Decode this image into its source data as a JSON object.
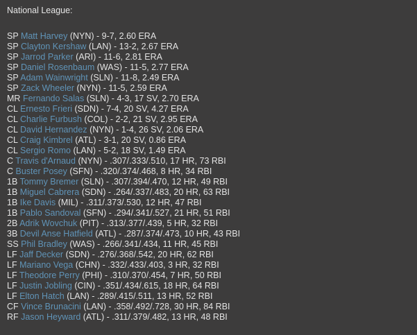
{
  "page": {
    "title": "National League:"
  },
  "colors": {
    "background": "#3d3c3c",
    "text": "#e3e3e3",
    "link": "#6094b8"
  },
  "players": [
    {
      "pos": "SP",
      "name": "Matt Harvey",
      "team": "NYN",
      "rest": "(NYN) - 9-7, 2.60 ERA"
    },
    {
      "pos": "SP",
      "name": "Clayton Kershaw",
      "team": "LAN",
      "rest": "(LAN) - 13-2, 2.67 ERA"
    },
    {
      "pos": "SP",
      "name": "Jarrod Parker",
      "team": "ARI",
      "rest": "(ARI) - 11-6, 2.81 ERA"
    },
    {
      "pos": "SP",
      "name": "Daniel Rosenbaum",
      "team": "WAS",
      "rest": "(WAS) - 11-5, 2.77 ERA"
    },
    {
      "pos": "SP",
      "name": "Adam Wainwright",
      "team": "SLN",
      "rest": "(SLN) - 11-8, 2.49 ERA"
    },
    {
      "pos": "SP",
      "name": "Zack Wheeler",
      "team": "NYN",
      "rest": "(NYN) - 11-5, 2.59 ERA"
    },
    {
      "pos": "MR",
      "name": "Fernando Salas",
      "team": "SLN",
      "rest": "(SLN) - 4-3, 17 SV, 2.70 ERA"
    },
    {
      "pos": "CL",
      "name": "Ernesto Frieri",
      "team": "SDN",
      "rest": "(SDN) - 7-4, 20 SV, 4.27 ERA"
    },
    {
      "pos": "CL",
      "name": "Charlie Furbush",
      "team": "COL",
      "rest": "(COL) - 2-2, 21 SV, 2.95 ERA"
    },
    {
      "pos": "CL",
      "name": "David Hernandez",
      "team": "NYN",
      "rest": "(NYN) - 1-4, 26 SV, 2.06 ERA"
    },
    {
      "pos": "CL",
      "name": "Craig Kimbrel",
      "team": "ATL",
      "rest": "(ATL) - 3-1, 20 SV, 0.86 ERA"
    },
    {
      "pos": "CL",
      "name": "Sergio Romo",
      "team": "LAN",
      "rest": "(LAN) - 5-2, 18 SV, 1.49 ERA"
    },
    {
      "pos": "C",
      "name": "Travis d'Arnaud",
      "team": "NYN",
      "rest": "(NYN) - .307/.333/.510, 17 HR, 73 RBI"
    },
    {
      "pos": "C",
      "name": "Buster Posey",
      "team": "SFN",
      "rest": "(SFN) - .320/.374/.468, 8 HR, 34 RBI"
    },
    {
      "pos": "1B",
      "name": "Tommy Bremer",
      "team": "SLN",
      "rest": "(SLN) - .307/.394/.470, 12 HR, 49 RBI"
    },
    {
      "pos": "1B",
      "name": "Miguel Cabrera",
      "team": "SDN",
      "rest": "(SDN) - .264/.337/.483, 20 HR, 63 RBI"
    },
    {
      "pos": "1B",
      "name": "Ike Davis",
      "team": "MIL",
      "rest": "(MIL) - .311/.373/.530, 12 HR, 47 RBI"
    },
    {
      "pos": "1B",
      "name": "Pablo Sandoval",
      "team": "SFN",
      "rest": "(SFN) - .294/.341/.527, 21 HR, 51 RBI"
    },
    {
      "pos": "2B",
      "name": "Adrik Wovchuk",
      "team": "PIT",
      "rest": "(PIT) - .313/.377/.439, 5 HR, 32 RBI"
    },
    {
      "pos": "3B",
      "name": "Devil Anse Hatfield",
      "team": "ATL",
      "rest": "(ATL) - .287/.374/.473, 10 HR, 43 RBI"
    },
    {
      "pos": "SS",
      "name": "Phil Bradley",
      "team": "WAS",
      "rest": "(WAS) - .266/.341/.434, 11 HR, 45 RBI"
    },
    {
      "pos": "LF",
      "name": "Jaff Decker",
      "team": "SDN",
      "rest": "(SDN) - .276/.368/.542, 20 HR, 62 RBI"
    },
    {
      "pos": "LF",
      "name": "Mariano Vega",
      "team": "CHN",
      "rest": "(CHN) - .332/.433/.403, 3 HR, 32 RBI"
    },
    {
      "pos": "LF",
      "name": "Theodore Perry",
      "team": "PHI",
      "rest": "(PHI) - .310/.370/.454, 7 HR, 50 RBI"
    },
    {
      "pos": "LF",
      "name": "Justin Jobling",
      "team": "CIN",
      "rest": "(CIN) - .351/.434/.615, 18 HR, 64 RBI"
    },
    {
      "pos": "LF",
      "name": "Elton Hatch",
      "team": "LAN",
      "rest": "(LAN) - .289/.415/.511, 13 HR, 52 RBI"
    },
    {
      "pos": "CF",
      "name": "Vince Brunacini",
      "team": "LAN",
      "rest": "(LAN) - .358/.492/.728, 30 HR, 84 RBI"
    },
    {
      "pos": "RF",
      "name": "Jason Heyward",
      "team": "ATL",
      "rest": "(ATL) - .311/.379/.482, 13 HR, 48 RBI"
    }
  ]
}
